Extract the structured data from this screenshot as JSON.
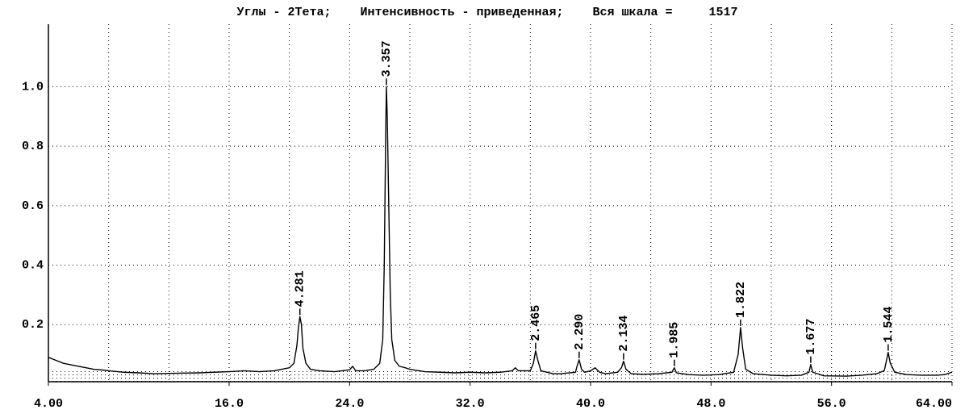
{
  "chart_data": {
    "type": "line",
    "title": "Углы - 2Тета;    Интенсивность - приведенная;    Вся шкала =     1517",
    "x": [
      4,
      4.5,
      5,
      5.5,
      6,
      6.5,
      7,
      7.5,
      8,
      9,
      10,
      11,
      12,
      13,
      14,
      15,
      16,
      17,
      18,
      19,
      19.5,
      20,
      20.3,
      20.5,
      20.6,
      20.7,
      20.8,
      20.9,
      21.1,
      21.4,
      22,
      23,
      23.5,
      24,
      24.2,
      24.4,
      25,
      25.6,
      26,
      26.2,
      26.3,
      26.4,
      26.44,
      26.5,
      26.6,
      26.7,
      26.8,
      27,
      27.3,
      27.7,
      28,
      29,
      30,
      31,
      32,
      33,
      34,
      34.8,
      35,
      35.2,
      36,
      36.2,
      36.35,
      36.5,
      36.7,
      37.5,
      38,
      39,
      39.1,
      39.24,
      39.4,
      39.6,
      40,
      40.3,
      40.6,
      41,
      41.8,
      42.05,
      42.19,
      42.35,
      42.7,
      43.5,
      44.5,
      45.4,
      45.56,
      45.7,
      46.5,
      47.5,
      48.5,
      49.5,
      49.8,
      49.96,
      50.1,
      50.3,
      50.8,
      52,
      53,
      54,
      54.5,
      54.62,
      54.75,
      55.5,
      57,
      58,
      59,
      59.5,
      59.65,
      59.76,
      59.9,
      60.2,
      61,
      62,
      63,
      63.5,
      64
    ],
    "series": [
      {
        "color": "#000000",
        "values": [
          0.09,
          0.08,
          0.07,
          0.065,
          0.06,
          0.055,
          0.05,
          0.048,
          0.045,
          0.04,
          0.038,
          0.035,
          0.036,
          0.037,
          0.038,
          0.04,
          0.042,
          0.045,
          0.042,
          0.045,
          0.05,
          0.055,
          0.07,
          0.13,
          0.19,
          0.227,
          0.2,
          0.12,
          0.07,
          0.05,
          0.045,
          0.042,
          0.045,
          0.048,
          0.06,
          0.045,
          0.045,
          0.05,
          0.07,
          0.15,
          0.4,
          0.85,
          1.0,
          0.9,
          0.6,
          0.3,
          0.15,
          0.08,
          0.06,
          0.055,
          0.05,
          0.042,
          0.04,
          0.038,
          0.04,
          0.038,
          0.04,
          0.045,
          0.055,
          0.045,
          0.045,
          0.07,
          0.112,
          0.08,
          0.045,
          0.035,
          0.035,
          0.04,
          0.06,
          0.082,
          0.05,
          0.04,
          0.045,
          0.055,
          0.04,
          0.035,
          0.04,
          0.055,
          0.077,
          0.05,
          0.035,
          0.033,
          0.035,
          0.04,
          0.055,
          0.038,
          0.032,
          0.03,
          0.032,
          0.04,
          0.1,
          0.19,
          0.12,
          0.05,
          0.035,
          0.03,
          0.028,
          0.03,
          0.04,
          0.066,
          0.04,
          0.028,
          0.027,
          0.03,
          0.035,
          0.045,
          0.08,
          0.107,
          0.07,
          0.04,
          0.032,
          0.03,
          0.03,
          0.032,
          0.04
        ]
      }
    ],
    "annotations": [
      {
        "text": "4.281",
        "x": 20.7,
        "y": 0.227
      },
      {
        "text": "3.357",
        "x": 26.44,
        "y": 1.0
      },
      {
        "text": "2.465",
        "x": 36.35,
        "y": 0.112
      },
      {
        "text": "2.290",
        "x": 39.24,
        "y": 0.082
      },
      {
        "text": "2.134",
        "x": 42.19,
        "y": 0.077
      },
      {
        "text": "1.985",
        "x": 45.56,
        "y": 0.055
      },
      {
        "text": "1.822",
        "x": 49.96,
        "y": 0.19
      },
      {
        "text": "1.677",
        "x": 54.62,
        "y": 0.066
      },
      {
        "text": "1.544",
        "x": 59.76,
        "y": 0.107
      }
    ],
    "xlim": [
      4,
      64
    ],
    "xticks": [
      {
        "value": 4,
        "label": "4.00"
      },
      {
        "value": 16,
        "label": "16.0"
      },
      {
        "value": 24,
        "label": "24.0"
      },
      {
        "value": 32,
        "label": "32.0"
      },
      {
        "value": 40,
        "label": "40.0"
      },
      {
        "value": 48,
        "label": "48.0"
      },
      {
        "value": 56,
        "label": "56.0"
      },
      {
        "value": 64,
        "label": "64.00"
      }
    ],
    "xgrid": [
      8,
      12,
      16,
      20,
      24,
      28,
      32,
      36,
      40,
      44,
      48,
      52,
      56,
      60,
      64
    ],
    "ylim": [
      0,
      1.21
    ],
    "yticks": [
      0.2,
      0.4,
      0.6,
      0.8,
      {
        "value": 1,
        "label": "1.0"
      }
    ],
    "grid": true
  }
}
